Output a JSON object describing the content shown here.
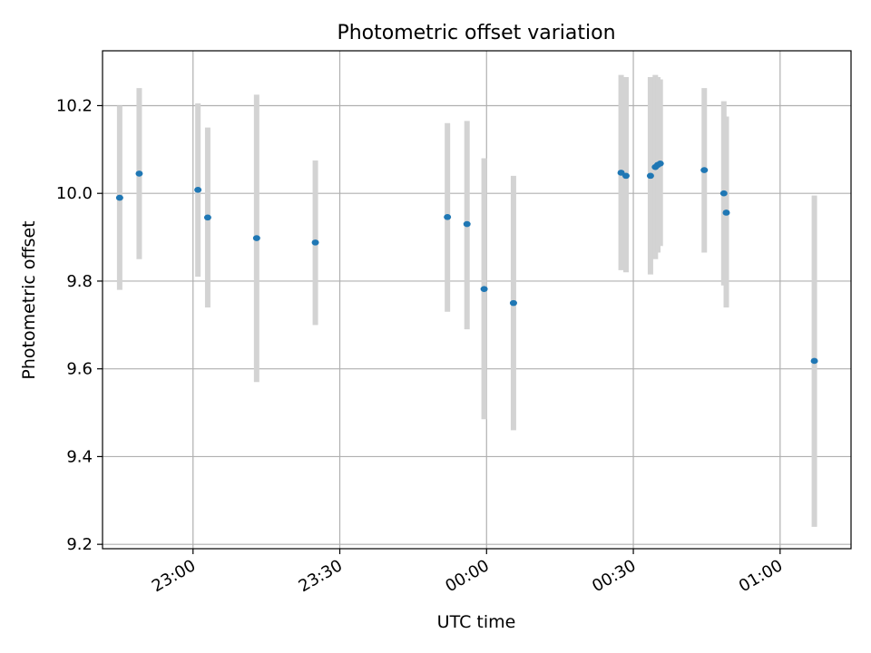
{
  "chart_data": {
    "type": "scatter",
    "title": "Photometric offset variation",
    "xlabel": "UTC time",
    "ylabel": "Photometric offset",
    "x_axis_type": "time",
    "xlim": [
      "22:41:30",
      "01:14:30"
    ],
    "ylim": [
      9.19,
      10.325
    ],
    "x_ticks": [
      {
        "label": "23:00",
        "value": "23:00"
      },
      {
        "label": "23:30",
        "value": "23:30"
      },
      {
        "label": "00:00",
        "value": "00:00"
      },
      {
        "label": "00:30",
        "value": "00:30"
      },
      {
        "label": "01:00",
        "value": "01:00"
      }
    ],
    "y_ticks": [
      {
        "label": "9.2",
        "value": 9.2
      },
      {
        "label": "9.4",
        "value": 9.4
      },
      {
        "label": "9.6",
        "value": 9.6
      },
      {
        "label": "9.8",
        "value": 9.8
      },
      {
        "label": "10.0",
        "value": 10.0
      },
      {
        "label": "10.2",
        "value": 10.2
      }
    ],
    "grid": true,
    "legend": "none",
    "marker_color": "#1f77b4",
    "errorbar_color": "#d3d3d3",
    "points": [
      {
        "x": "22:45",
        "y": 9.99,
        "low": 9.78,
        "high": 10.2
      },
      {
        "x": "22:49",
        "y": 10.045,
        "low": 9.85,
        "high": 10.24
      },
      {
        "x": "23:01",
        "y": 10.008,
        "low": 9.81,
        "high": 10.205
      },
      {
        "x": "23:03",
        "y": 9.945,
        "low": 9.74,
        "high": 10.15
      },
      {
        "x": "23:13",
        "y": 9.898,
        "low": 9.57,
        "high": 10.225
      },
      {
        "x": "23:25",
        "y": 9.888,
        "low": 9.7,
        "high": 10.075
      },
      {
        "x": "23:52",
        "y": 9.946,
        "low": 9.73,
        "high": 10.16
      },
      {
        "x": "23:56",
        "y": 9.93,
        "low": 9.69,
        "high": 10.165
      },
      {
        "x": "23:59:30",
        "y": 9.782,
        "low": 9.485,
        "high": 10.08
      },
      {
        "x": "00:05:30",
        "y": 9.75,
        "low": 9.46,
        "high": 10.04
      },
      {
        "x": "00:27:30",
        "y": 10.047,
        "low": 9.825,
        "high": 10.27
      },
      {
        "x": "00:28:30",
        "y": 10.04,
        "low": 9.82,
        "high": 10.265
      },
      {
        "x": "00:33:30",
        "y": 10.04,
        "low": 9.815,
        "high": 10.265
      },
      {
        "x": "00:34:30",
        "y": 10.06,
        "low": 9.85,
        "high": 10.27
      },
      {
        "x": "00:35",
        "y": 10.065,
        "low": 9.865,
        "high": 10.265
      },
      {
        "x": "00:35:30",
        "y": 10.068,
        "low": 9.88,
        "high": 10.26
      },
      {
        "x": "00:44:30",
        "y": 10.053,
        "low": 9.865,
        "high": 10.24
      },
      {
        "x": "00:48:30",
        "y": 10.0,
        "low": 9.79,
        "high": 10.21
      },
      {
        "x": "00:49",
        "y": 9.956,
        "low": 9.74,
        "high": 10.175
      },
      {
        "x": "01:07",
        "y": 9.618,
        "low": 9.24,
        "high": 9.995
      }
    ]
  }
}
